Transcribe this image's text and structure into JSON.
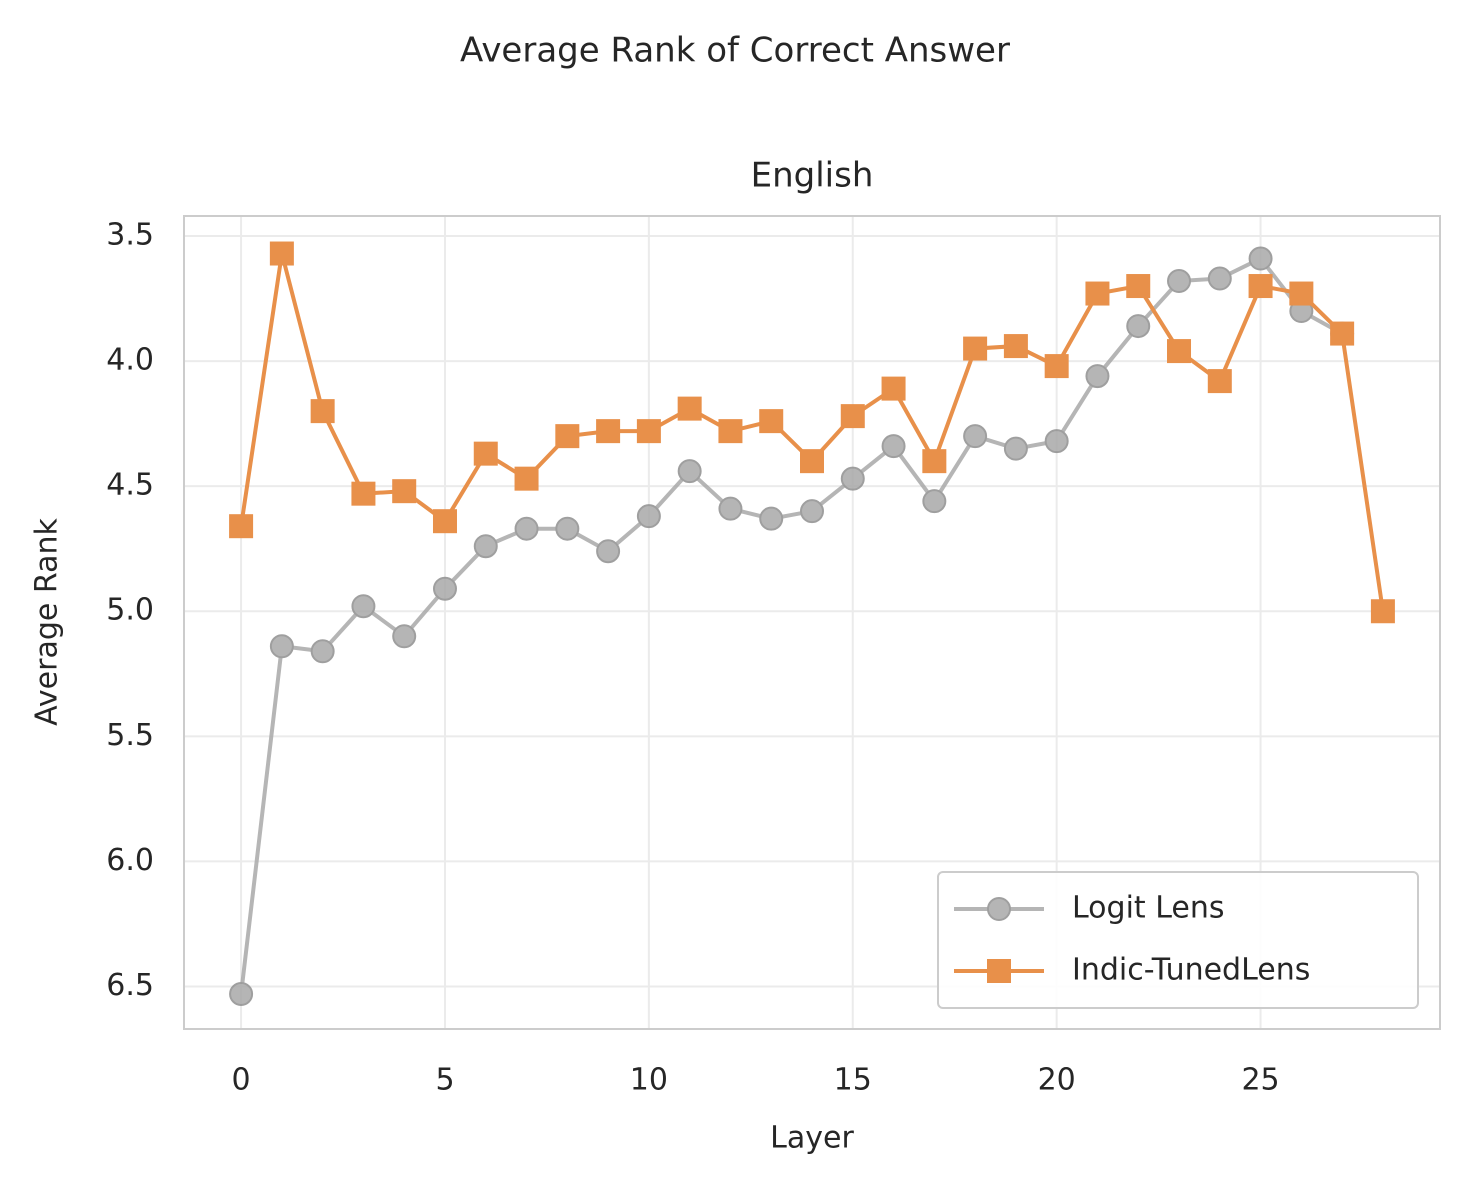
{
  "chart_data": {
    "type": "line",
    "title": "Average Rank of Correct Answer",
    "subtitle": "English",
    "xlabel": "Layer",
    "ylabel": "Average Rank",
    "x": [
      0,
      1,
      2,
      3,
      4,
      5,
      6,
      7,
      8,
      9,
      10,
      11,
      12,
      13,
      14,
      15,
      16,
      17,
      18,
      19,
      20,
      21,
      22,
      23,
      24,
      25,
      26,
      27,
      28
    ],
    "series": [
      {
        "name": "Logit Lens",
        "color": "#a9a9a9",
        "marker": "circle",
        "values": [
          6.53,
          5.14,
          5.16,
          4.98,
          5.1,
          4.91,
          4.74,
          4.67,
          4.67,
          4.76,
          4.62,
          4.44,
          4.59,
          4.63,
          4.6,
          4.47,
          4.34,
          4.56,
          4.3,
          4.35,
          4.32,
          4.06,
          3.86,
          3.68,
          3.67,
          3.59,
          3.8,
          3.89,
          null
        ]
      },
      {
        "name": "Indic-TunedLens",
        "color": "#e8904a",
        "marker": "square",
        "values": [
          4.66,
          3.57,
          4.2,
          4.53,
          4.52,
          4.64,
          4.37,
          4.47,
          4.3,
          4.28,
          4.28,
          4.19,
          4.28,
          4.24,
          4.4,
          4.22,
          4.11,
          4.4,
          3.95,
          3.94,
          4.02,
          3.73,
          3.7,
          3.96,
          4.08,
          3.7,
          3.73,
          3.89,
          5.0
        ]
      }
    ],
    "xlim": [
      -1.4,
      29.4
    ],
    "xticks": [
      0,
      5,
      10,
      15,
      20,
      25
    ],
    "ylim": [
      3.42,
      6.67
    ],
    "invert_y": true,
    "yticks": [
      3.5,
      {
        "value": 4,
        "label": "4.0"
      },
      4.5,
      {
        "value": 5,
        "label": "5.0"
      },
      5.5,
      {
        "value": 6,
        "label": "6.0"
      },
      6.5
    ],
    "grid": true,
    "legend": "lower right"
  }
}
